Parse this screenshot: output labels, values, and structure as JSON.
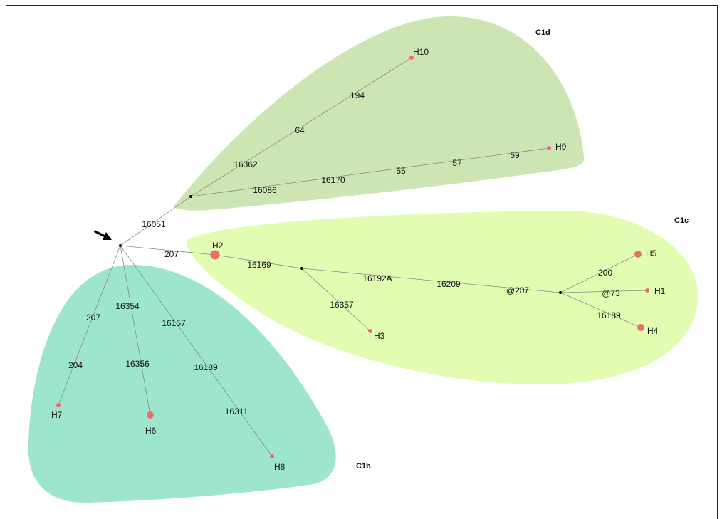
{
  "colors": {
    "c1d_fill": "#cde5b3",
    "c1c_fill": "#e2fcb1",
    "c1b_fill": "#9de6cd",
    "haplotype_node": "#f06b6b",
    "median_vector": "#000000",
    "edge": "#8a8a8a"
  },
  "arrow_icon": "black-arrow-icon",
  "clusters": [
    {
      "id": "c1d",
      "label": "C1d"
    },
    {
      "id": "c1c",
      "label": "C1c"
    },
    {
      "id": "c1b",
      "label": "C1b"
    }
  ],
  "nodes": [
    {
      "id": "root",
      "type": "median",
      "label": ""
    },
    {
      "id": "m_c1d",
      "type": "median",
      "label": ""
    },
    {
      "id": "m_c1c_a",
      "type": "median",
      "label": ""
    },
    {
      "id": "m_c1c_b",
      "type": "median",
      "label": ""
    },
    {
      "id": "H1",
      "type": "haplotype",
      "size": "small",
      "label": "H1"
    },
    {
      "id": "H2",
      "type": "haplotype",
      "size": "large",
      "label": "H2"
    },
    {
      "id": "H3",
      "type": "haplotype",
      "size": "small",
      "label": "H3"
    },
    {
      "id": "H4",
      "type": "haplotype",
      "size": "medium",
      "label": "H4"
    },
    {
      "id": "H5",
      "type": "haplotype",
      "size": "medium",
      "label": "H5"
    },
    {
      "id": "H6",
      "type": "haplotype",
      "size": "medium",
      "label": "H6"
    },
    {
      "id": "H7",
      "type": "haplotype",
      "size": "small",
      "label": "H7"
    },
    {
      "id": "H8",
      "type": "haplotype",
      "size": "small",
      "label": "H8"
    },
    {
      "id": "H9",
      "type": "haplotype",
      "size": "small",
      "label": "H9"
    },
    {
      "id": "H10",
      "type": "haplotype",
      "size": "small",
      "label": "H10"
    }
  ],
  "edges": [
    {
      "id": "e_root_c1d",
      "from": "root",
      "to": "m_c1d",
      "mutations": [
        "16051"
      ]
    },
    {
      "id": "e_c1d_h10",
      "from": "m_c1d",
      "to": "H10",
      "mutations": [
        "16362",
        "64",
        "194"
      ]
    },
    {
      "id": "e_c1d_h9",
      "from": "m_c1d",
      "to": "H9",
      "mutations": [
        "16086",
        "16170",
        "55",
        "57",
        "59"
      ]
    },
    {
      "id": "e_root_h2",
      "from": "root",
      "to": "H2",
      "mutations": [
        "207"
      ]
    },
    {
      "id": "e_h2_ma",
      "from": "H2",
      "to": "m_c1c_a",
      "mutations": [
        "16169"
      ]
    },
    {
      "id": "e_ma_h3",
      "from": "m_c1c_a",
      "to": "H3",
      "mutations": [
        "16357"
      ]
    },
    {
      "id": "e_ma_mb",
      "from": "m_c1c_a",
      "to": "m_c1c_b",
      "mutations": [
        "16192A",
        "16209",
        "@207"
      ]
    },
    {
      "id": "e_mb_h5",
      "from": "m_c1c_b",
      "to": "H5",
      "mutations": [
        "200"
      ]
    },
    {
      "id": "e_mb_h1",
      "from": "m_c1c_b",
      "to": "H1",
      "mutations": [
        "@73"
      ]
    },
    {
      "id": "e_mb_h4",
      "from": "m_c1c_b",
      "to": "H4",
      "mutations": [
        "16189"
      ]
    },
    {
      "id": "e_root_h7",
      "from": "root",
      "to": "H7",
      "mutations": [
        "207",
        "204"
      ]
    },
    {
      "id": "e_root_h6",
      "from": "root",
      "to": "H6",
      "mutations": [
        "16354",
        "16356"
      ]
    },
    {
      "id": "e_root_h8",
      "from": "root",
      "to": "H8",
      "mutations": [
        "16157",
        "16189",
        "16311"
      ]
    }
  ]
}
